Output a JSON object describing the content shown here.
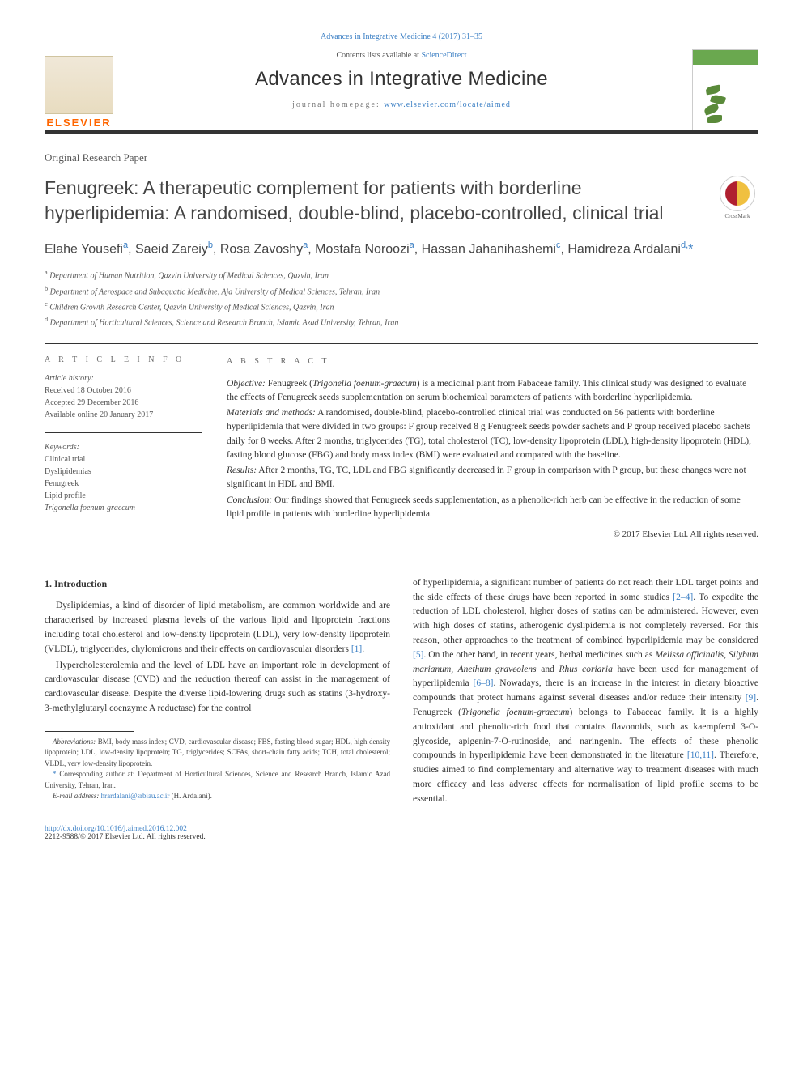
{
  "topLink": "Advances in Integrative Medicine 4 (2017) 31–35",
  "header": {
    "contentsPrefix": "Contents lists available at ",
    "contentsLink": "ScienceDirect",
    "journalName": "Advances in Integrative Medicine",
    "homepagePrefix": "journal homepage: ",
    "homepageLink": "www.elsevier.com/locate/aimed",
    "elsevier": "ELSEVIER"
  },
  "paperType": "Original Research Paper",
  "title": "Fenugreek: A therapeutic complement for patients with borderline hyperlipidemia: A randomised, double-blind, placebo-controlled, clinical trial",
  "crossmarkLabel": "CrossMark",
  "authorsHtml": "Elahe Yousefi<sup>a</sup>, Saeid Zareiy<sup>b</sup>, Rosa Zavoshy<sup>a</sup>, Mostafa Noroozi<sup>a</sup>, Hassan Jahanihashemi<sup>c</sup>, Hamidreza Ardalani<sup>d,</sup><span class=\"star\">*</span>",
  "affiliations": [
    {
      "sup": "a",
      "text": "Department of Human Nutrition, Qazvin University of Medical Sciences, Qazvin, Iran"
    },
    {
      "sup": "b",
      "text": "Department of Aerospace and Subaquatic Medicine, Aja University of Medical Sciences, Tehran, Iran"
    },
    {
      "sup": "c",
      "text": "Children Growth Research Center, Qazvin University of Medical Sciences, Qazvin, Iran"
    },
    {
      "sup": "d",
      "text": "Department of Horticultural Sciences, Science and Research Branch, Islamic Azad University, Tehran, Iran"
    }
  ],
  "articleInfo": {
    "heading": "A R T I C L E   I N F O",
    "historyLabel": "Article history:",
    "history": [
      "Received 18 October 2016",
      "Accepted 29 December 2016",
      "Available online 20 January 2017"
    ],
    "keywordsLabel": "Keywords:",
    "keywords": [
      "Clinical trial",
      "Dyslipidemias",
      "Fenugreek",
      "Lipid profile",
      "Trigonella foenum-graecum"
    ]
  },
  "abstract": {
    "heading": "A B S T R A C T",
    "objectiveLabel": "Objective:",
    "objective": " Fenugreek (Trigonella foenum-graecum) is a medicinal plant from Fabaceae family. This clinical study was designed to evaluate the effects of Fenugreek seeds supplementation on serum biochemical parameters of patients with borderline hyperlipidemia.",
    "methodsLabel": "Materials and methods:",
    "methods": " A randomised, double-blind, placebo-controlled clinical trial was conducted on 56 patients with borderline hyperlipidemia that were divided in two groups: F group received 8 g Fenugreek seeds powder sachets and P group received placebo sachets daily for 8 weeks. After 2 months, triglycerides (TG), total cholesterol (TC), low-density lipoprotein (LDL), high-density lipoprotein (HDL), fasting blood glucose (FBG) and body mass index (BMI) were evaluated and compared with the baseline.",
    "resultsLabel": "Results:",
    "results": " After 2 months, TG, TC, LDL and FBG significantly decreased in F group in comparison with P group, but these changes were not significant in HDL and BMI.",
    "conclusionLabel": "Conclusion:",
    "conclusion": " Our findings showed that Fenugreek seeds supplementation, as a phenolic-rich herb can be effective in the reduction of some lipid profile in patients with borderline hyperlipidemia.",
    "copyright": "© 2017 Elsevier Ltd. All rights reserved."
  },
  "introHeading": "1. Introduction",
  "introP1": "Dyslipidemias, a kind of disorder of lipid metabolism, are common worldwide and are characterised by increased plasma levels of the various lipid and lipoprotein fractions including total cholesterol and low-density lipoprotein (LDL), very low-density lipoprotein (VLDL), triglycerides, chylomicrons and their effects on cardiovascular disorders ",
  "ref1": "[1]",
  "introP2a": "Hypercholesterolemia and the level of LDL have an important role in development of cardiovascular disease (CVD) and the reduction thereof can assist in the management of cardiovascular disease. Despite the diverse lipid-lowering drugs such as statins (3-hydroxy-3-methylglutaryl coenzyme A reductase) for the control",
  "introP2b": "of hyperlipidemia, a significant number of patients do not reach their LDL target points and the side effects of these drugs have been reported in some studies ",
  "ref24": "[2–4]",
  "introP2c": ". To expedite the reduction of LDL cholesterol, higher doses of statins can be administered. However, even with high doses of statins, atherogenic dyslipidemia is not completely reversed. For this reason, other approaches to the treatment of combined hyperlipidemia may be considered ",
  "ref5": "[5]",
  "introP2d": ". On the other hand, in recent years, herbal medicines such as ",
  "herbs": "Melissa officinalis, Silybum marianum, Anethum graveolens",
  "and": " and ",
  "herb2": "Rhus coriaria",
  "introP2e": " have been used for management of hyperlipidemia ",
  "ref68": "[6–8]",
  "introP2f": ". Nowadays, there is an increase in the interest in dietary bioactive compounds that protect humans against several diseases and/or reduce their intensity ",
  "ref9": "[9]",
  "introP2g": ". Fenugreek (",
  "fenugreek": "Trigonella foenum-graecum",
  "introP2h": ") belongs to Fabaceae family. It is a highly antioxidant and phenolic-rich food that contains flavonoids, such as kaempferol 3-O-glycoside, apigenin-7-O-rutinoside, and naringenin. The effects of these phenolic compounds in hyperlipidemia have been demonstrated in the literature ",
  "ref1011": "[10,11]",
  "introP2i": ". Therefore, studies aimed to find complementary and alternative way to treatment diseases with much more efficacy and less adverse effects for normalisation of lipid profile seems to be essential.",
  "abbrevLabel": "Abbreviations:",
  "abbrevText": " BMI, body mass index; CVD, cardiovascular disease; FBS, fasting blood sugar; HDL, high density lipoprotein; LDL, low-density lipoprotein; TG, triglycerides; SCFAs, short-chain fatty acids; TCH, total cholesterol; VLDL, very low-density lipoprotein.",
  "corrText": " Corresponding author at: Department of Horticultural Sciences, Science and Research Branch, Islamic Azad University, Tehran, Iran.",
  "emailLabel": "E-mail address:",
  "email": "hrardalani@srbiau.ac.ir",
  "emailSuffix": " (H. Ardalani).",
  "doi": "http://dx.doi.org/10.1016/j.aimed.2016.12.002",
  "issn": "2212-9588/© 2017 Elsevier Ltd. All rights reserved.",
  "colors": {
    "link": "#3b7fc4",
    "orange": "#ff6600",
    "text": "#333333"
  }
}
